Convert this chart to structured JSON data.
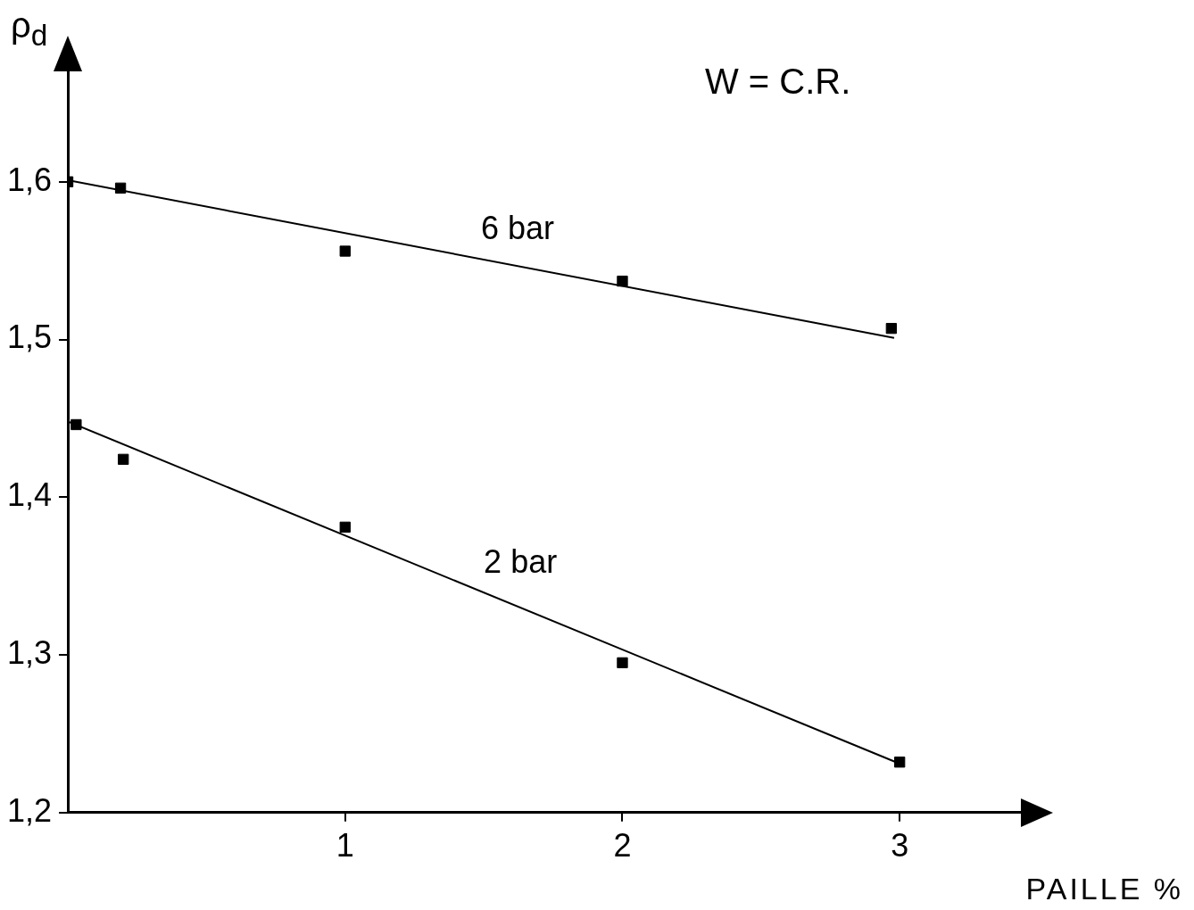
{
  "chart_data": {
    "type": "scatter",
    "ylabel": "ρ$_{d}$",
    "xlabel": "PAILLE %",
    "annotations": [
      "W = C.R."
    ],
    "xlim": [
      0,
      3.45
    ],
    "ylim": [
      1.2,
      1.67
    ],
    "xticks": [
      1,
      2,
      3
    ],
    "yticks": [
      {
        "value": 1.2,
        "label": "1,2"
      },
      {
        "value": 1.3,
        "label": "1,3"
      },
      {
        "value": 1.4,
        "label": "1,4"
      },
      {
        "value": 1.5,
        "label": "1,5"
      },
      {
        "value": 1.6,
        "label": "1,6"
      }
    ],
    "grid": false,
    "legend": false,
    "marker": "square",
    "series": [
      {
        "color": "#000000",
        "x": [
          0,
          0.19,
          1,
          2,
          2.97
        ],
        "values": [
          1.6,
          1.596,
          1.556,
          1.537,
          1.507
        ]
      },
      {
        "type": "line",
        "name": "6 bar",
        "color": "#000000",
        "marker": "none",
        "x": [
          0,
          2.98
        ],
        "values": [
          1.601,
          1.501
        ]
      },
      {
        "color": "#000000",
        "x": [
          0.03,
          0.2,
          1,
          2,
          3
        ],
        "values": [
          1.446,
          1.424,
          1.381,
          1.295,
          1.232
        ]
      },
      {
        "type": "line",
        "name": "2 bar",
        "color": "#000000",
        "marker": "none",
        "x": [
          0,
          3
        ],
        "values": [
          1.448,
          1.231
        ]
      }
    ]
  }
}
